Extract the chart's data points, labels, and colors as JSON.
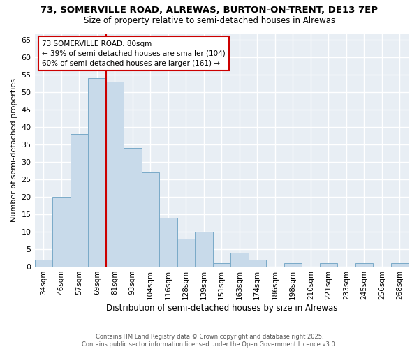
{
  "title_line1": "73, SOMERVILLE ROAD, ALREWAS, BURTON-ON-TRENT, DE13 7EP",
  "title_line2": "Size of property relative to semi-detached houses in Alrewas",
  "xlabel": "Distribution of semi-detached houses by size in Alrewas",
  "ylabel": "Number of semi-detached properties",
  "categories": [
    "34sqm",
    "46sqm",
    "57sqm",
    "69sqm",
    "81sqm",
    "93sqm",
    "104sqm",
    "116sqm",
    "128sqm",
    "139sqm",
    "151sqm",
    "163sqm",
    "174sqm",
    "186sqm",
    "198sqm",
    "210sqm",
    "221sqm",
    "233sqm",
    "245sqm",
    "256sqm",
    "268sqm"
  ],
  "values": [
    2,
    20,
    38,
    54,
    53,
    34,
    27,
    14,
    8,
    10,
    1,
    4,
    2,
    0,
    1,
    0,
    1,
    0,
    1,
    0,
    1
  ],
  "bar_color": "#c8daea",
  "bar_edge_color": "#7aaac8",
  "ylim": [
    0,
    67
  ],
  "yticks": [
    0,
    5,
    10,
    15,
    20,
    25,
    30,
    35,
    40,
    45,
    50,
    55,
    60,
    65
  ],
  "annotation_line1": "73 SOMERVILLE ROAD: 80sqm",
  "annotation_line2": "← 39% of semi-detached houses are smaller (104)",
  "annotation_line3": "60% of semi-detached houses are larger (161) →",
  "line_color": "#cc0000",
  "ann_edge_color": "#cc0000",
  "ann_face_color": "#ffffff",
  "bg_color": "#ffffff",
  "plot_bg_color": "#e8eef4",
  "grid_color": "#ffffff",
  "footer": "Contains HM Land Registry data © Crown copyright and database right 2025.\nContains public sector information licensed under the Open Government Licence v3.0."
}
